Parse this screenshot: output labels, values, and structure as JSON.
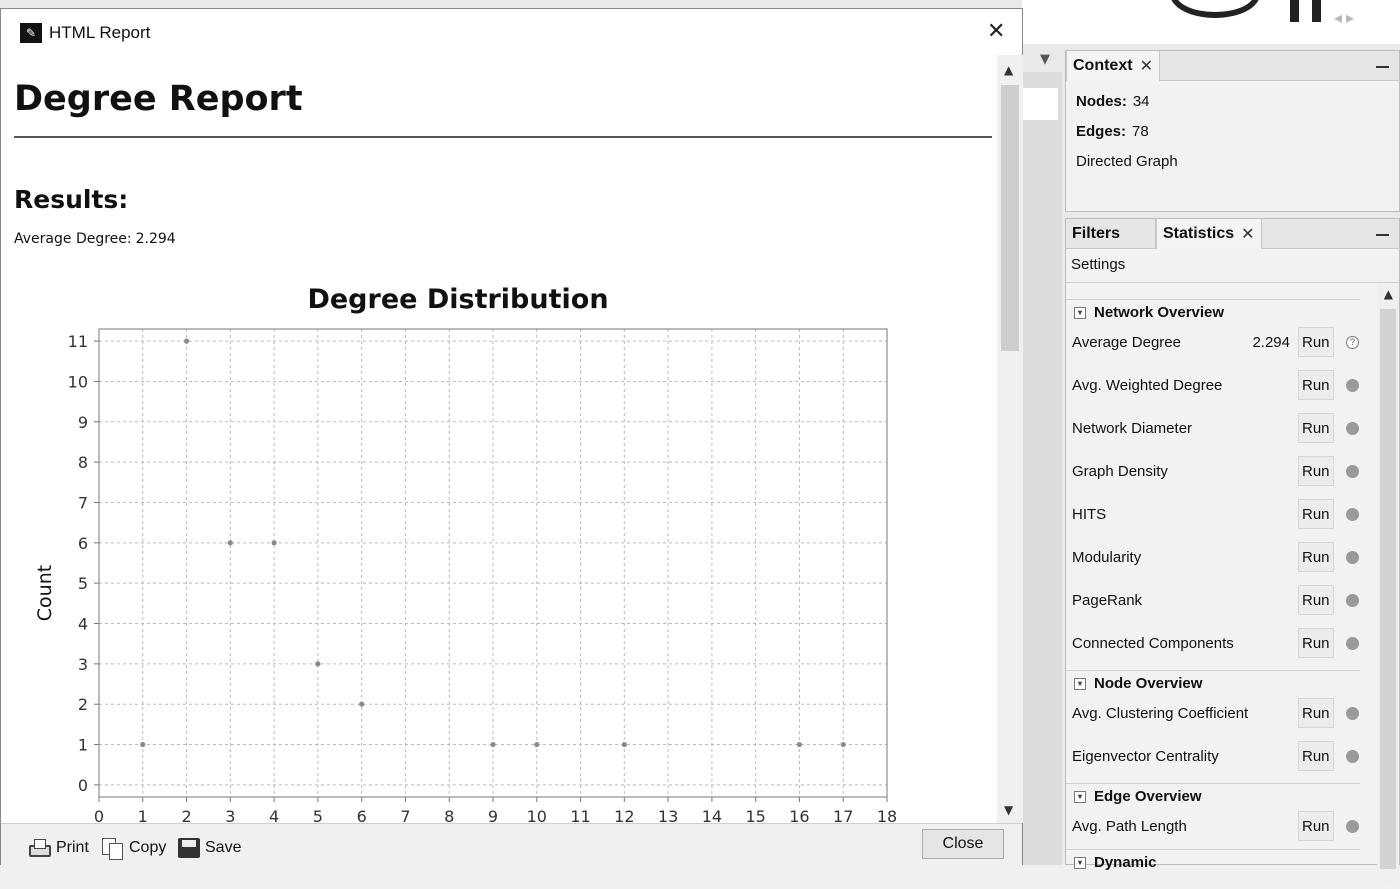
{
  "dialog": {
    "title": "HTML Report",
    "report_title": "Degree Report",
    "results_heading": "Results:",
    "avg_label": "Average Degree:",
    "avg_value": "2.294",
    "toolbar": {
      "print": "Print",
      "copy": "Copy",
      "save": "Save",
      "close": "Close"
    }
  },
  "chart_data": {
    "type": "scatter",
    "title": "Degree Distribution",
    "xlabel": "",
    "ylabel": "Count",
    "xlim": [
      0,
      18
    ],
    "ylim": [
      0,
      11
    ],
    "x_ticks": [
      "0",
      "1",
      "2",
      "3",
      "4",
      "5",
      "6",
      "7",
      "8",
      "9",
      "10",
      "11",
      "12",
      "13",
      "14",
      "15",
      "16",
      "17",
      "18"
    ],
    "y_ticks": [
      "0",
      "1",
      "2",
      "3",
      "4",
      "5",
      "6",
      "7",
      "8",
      "9",
      "10",
      "11"
    ],
    "grid": true,
    "points": [
      {
        "x": 1,
        "y": 1
      },
      {
        "x": 2,
        "y": 11
      },
      {
        "x": 3,
        "y": 6
      },
      {
        "x": 4,
        "y": 6
      },
      {
        "x": 5,
        "y": 3
      },
      {
        "x": 6,
        "y": 2
      },
      {
        "x": 9,
        "y": 1
      },
      {
        "x": 10,
        "y": 1
      },
      {
        "x": 12,
        "y": 1
      },
      {
        "x": 16,
        "y": 1
      },
      {
        "x": 17,
        "y": 1
      }
    ],
    "point_color": "#8a8a8a"
  },
  "context": {
    "tab": "Context",
    "nodes_label": "Nodes:",
    "nodes_value": "34",
    "edges_label": "Edges:",
    "edges_value": "78",
    "graph_type": "Directed Graph"
  },
  "stats_panel": {
    "tab_filters": "Filters",
    "tab_statistics": "Statistics",
    "settings": "Settings",
    "run_label": "Run",
    "sections": [
      {
        "title": "Network Overview",
        "items": [
          {
            "name": "Average Degree",
            "value": "2.294"
          },
          {
            "name": "Avg. Weighted Degree",
            "value": ""
          },
          {
            "name": "Network Diameter",
            "value": ""
          },
          {
            "name": "Graph Density",
            "value": ""
          },
          {
            "name": "HITS",
            "value": ""
          },
          {
            "name": "Modularity",
            "value": ""
          },
          {
            "name": "PageRank",
            "value": ""
          },
          {
            "name": "Connected Components",
            "value": ""
          }
        ]
      },
      {
        "title": "Node Overview",
        "items": [
          {
            "name": "Avg. Clustering Coefficient",
            "value": ""
          },
          {
            "name": "Eigenvector Centrality",
            "value": ""
          }
        ]
      },
      {
        "title": "Edge Overview",
        "items": [
          {
            "name": "Avg. Path Length",
            "value": ""
          }
        ]
      },
      {
        "title": "Dynamic",
        "items": []
      }
    ]
  }
}
